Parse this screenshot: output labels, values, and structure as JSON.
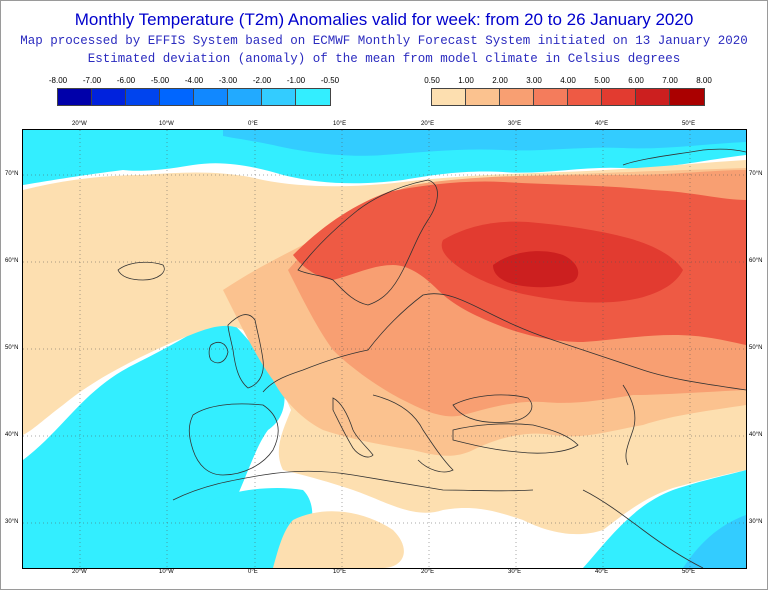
{
  "title": "Monthly Temperature (T2m) Anomalies valid for week: from 20 to 26 January 2020",
  "subtitle1": "Map processed by EFFIS System based on ECMWF Monthly Forecast System initiated on 13 January 2020",
  "subtitle2": "Estimated deviation (anomaly) of the mean from model climate in Celsius degrees",
  "legend_cold": {
    "labels": [
      "-8.00",
      "-7.00",
      "-6.00",
      "-5.00",
      "-4.00",
      "-3.00",
      "-2.00",
      "-1.00",
      "-0.50"
    ],
    "colors": [
      "#0000aa",
      "#0022dd",
      "#0044ee",
      "#0066ff",
      "#1188ff",
      "#22aaff",
      "#33ccff",
      "#33eeff"
    ]
  },
  "legend_warm": {
    "labels": [
      "0.50",
      "1.00",
      "2.00",
      "3.00",
      "4.00",
      "5.00",
      "6.00",
      "7.00",
      "8.00"
    ],
    "colors": [
      "#fddfb0",
      "#fbc28f",
      "#f89f72",
      "#f47c5c",
      "#ee5a44",
      "#e23b30",
      "#cc1f1f",
      "#aa0000"
    ]
  },
  "lon_labels": [
    "20°W",
    "10°W",
    "0°E",
    "10°E",
    "20°E",
    "30°E",
    "40°E",
    "50°E"
  ],
  "lat_labels": [
    "70°N",
    "60°N",
    "50°N",
    "40°N",
    "30°N"
  ],
  "map_colors": {
    "neutral": "#ffffff",
    "cold_light": "#33eeff",
    "cold_mid": "#33ccff",
    "cold_dark": "#22aaff",
    "warm_light": "#fddfb0",
    "warm_mid": "#fbc28f",
    "warm_med": "#f89f72",
    "warm_strong": "#ee5a44",
    "warm_stronger": "#e23b30",
    "warm_max": "#cc1f1f",
    "coast": "#333333",
    "grid": "#555555"
  }
}
